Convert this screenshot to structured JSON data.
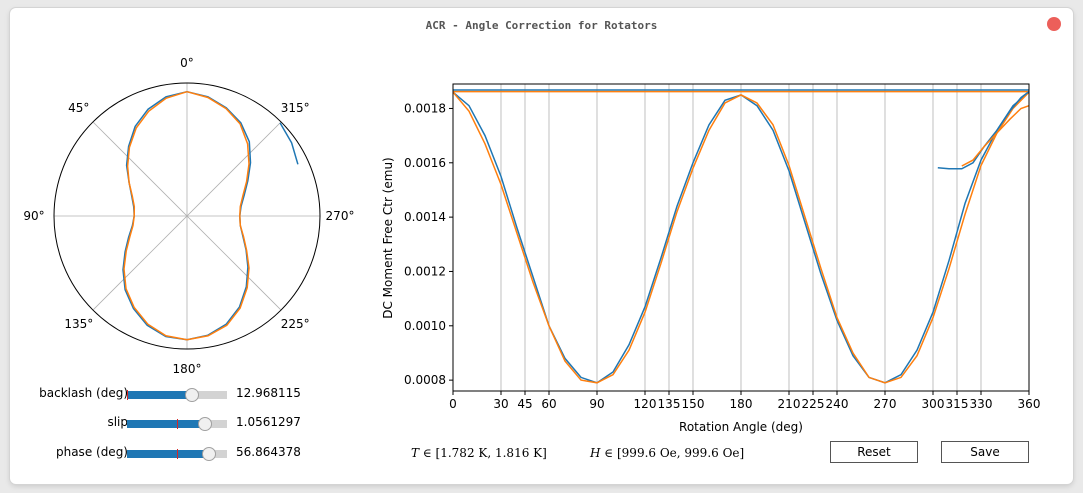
{
  "window": {
    "title": "ACR - Angle Correction for Rotators"
  },
  "polar": {
    "angle_labels": [
      "0°",
      "45°",
      "90°",
      "135°",
      "180°",
      "225°",
      "270°",
      "315°"
    ]
  },
  "sliders": [
    {
      "label": "backlash (deg)",
      "value_text": "12.968115",
      "fraction": 0.65,
      "init_fraction": 0.0
    },
    {
      "label": "slip",
      "value_text": "1.0561297",
      "fraction": 0.78,
      "init_fraction": 0.5
    },
    {
      "label": "phase (deg)",
      "value_text": "56.864378",
      "fraction": 0.82,
      "init_fraction": 0.5
    }
  ],
  "info": {
    "t_symbol": "T",
    "t_range": "∈ [1.782 K, 1.816 K]",
    "h_symbol": "H",
    "h_range": "∈ [999.6 Oe, 999.6 Oe]"
  },
  "buttons": {
    "reset": "Reset",
    "save": "Save"
  },
  "colors": {
    "series_blue": "#1f77b4",
    "series_orange": "#ff7f0e",
    "close": "#ec5f5a"
  },
  "chart_data": {
    "type": "line",
    "xlabel": "Rotation Angle (deg)",
    "ylabel": "DC Moment Free Ctr (emu)",
    "xlim": [
      0,
      360
    ],
    "ylim": [
      0.00076,
      0.00189
    ],
    "xticks": [
      0,
      30,
      45,
      60,
      90,
      120,
      135,
      150,
      180,
      210,
      225,
      240,
      270,
      300,
      315,
      330,
      360
    ],
    "yticks": [
      0.0008,
      0.001,
      0.0012,
      0.0014,
      0.0016,
      0.0018
    ],
    "ytick_labels": [
      "0.0008",
      "0.0010",
      "0.0012",
      "0.0014",
      "0.0016",
      "0.0018"
    ],
    "grid": "vertical",
    "series": [
      {
        "color": "#1f77b4",
        "x": [
          0,
          10,
          20,
          30,
          40,
          50,
          60,
          70,
          80,
          90,
          100,
          110,
          120,
          130,
          140,
          150,
          160,
          170,
          180,
          190,
          200,
          210,
          220,
          230,
          240,
          250,
          260,
          270,
          280,
          290,
          300,
          310,
          320,
          330,
          340,
          350,
          360
        ],
        "y": [
          0.00186,
          0.00181,
          0.0017,
          0.00155,
          0.00136,
          0.00118,
          0.001,
          0.00088,
          0.00081,
          0.00079,
          0.00083,
          0.00093,
          0.00107,
          0.00125,
          0.00144,
          0.0016,
          0.00174,
          0.00183,
          0.00185,
          0.00181,
          0.00172,
          0.00157,
          0.00138,
          0.00119,
          0.00102,
          0.00089,
          0.00081,
          0.00079,
          0.00082,
          0.00091,
          0.00105,
          0.00124,
          0.00145,
          0.00161,
          0.00172,
          0.00181,
          0.00186
        ]
      },
      {
        "color": "#ff7f0e",
        "x": [
          0,
          10,
          20,
          30,
          40,
          50,
          60,
          70,
          80,
          90,
          100,
          110,
          120,
          130,
          140,
          150,
          160,
          170,
          180,
          190,
          200,
          210,
          220,
          230,
          240,
          250,
          260,
          270,
          280,
          290,
          300,
          310,
          320,
          330,
          340,
          350,
          360
        ],
        "y": [
          0.00186,
          0.00179,
          0.00167,
          0.00152,
          0.00134,
          0.00116,
          0.001,
          0.00087,
          0.0008,
          0.00079,
          0.00082,
          0.00091,
          0.00105,
          0.00123,
          0.00142,
          0.00158,
          0.00172,
          0.00182,
          0.00185,
          0.00182,
          0.00174,
          0.00159,
          0.0014,
          0.00121,
          0.00103,
          0.0009,
          0.00081,
          0.00079,
          0.00081,
          0.00089,
          0.00103,
          0.00121,
          0.00141,
          0.00159,
          0.00171,
          0.0018,
          0.00186
        ]
      },
      {
        "color": "#1f77b4",
        "x": [
          0,
          360
        ],
        "y": [
          0.001868,
          0.001868
        ]
      },
      {
        "color": "#ff7f0e",
        "x": [
          0,
          360
        ],
        "y": [
          0.001862,
          0.001862
        ]
      },
      {
        "color": "#1f77b4",
        "x": [
          303,
          310,
          318,
          325,
          332,
          340,
          348,
          355,
          360
        ],
        "y": [
          0.001582,
          0.001578,
          0.001578,
          0.0016,
          0.00166,
          0.00172,
          0.00179,
          0.00184,
          0.001862
        ]
      },
      {
        "color": "#ff7f0e",
        "x": [
          318,
          325,
          332,
          340,
          348,
          355,
          360
        ],
        "y": [
          0.001588,
          0.00161,
          0.00166,
          0.00171,
          0.00176,
          0.0018,
          0.00181
        ]
      }
    ]
  }
}
